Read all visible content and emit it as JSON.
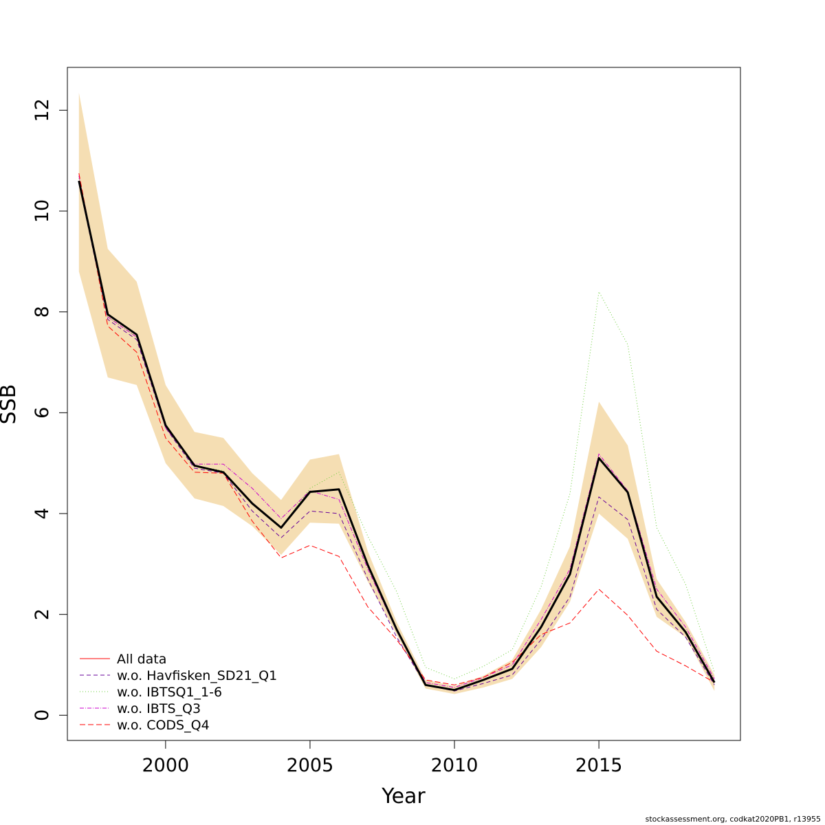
{
  "chart_data": {
    "type": "line",
    "xlabel": "Year",
    "ylabel": "SSB",
    "xlim": [
      1996.6,
      2019.9
    ],
    "ylim": [
      -0.5,
      12.85
    ],
    "x_ticks": [
      2000,
      2005,
      2010,
      2015
    ],
    "y_ticks": [
      0,
      2,
      4,
      6,
      8,
      10,
      12
    ],
    "x": [
      1997,
      1998,
      1999,
      2000,
      2001,
      2002,
      2003,
      2004,
      2005,
      2006,
      2007,
      2008,
      2009,
      2010,
      2011,
      2012,
      2013,
      2014,
      2015,
      2016,
      2017,
      2018,
      2019
    ],
    "confidence_band": {
      "color": "#f5deb3",
      "lower": [
        8.8,
        6.7,
        6.55,
        5.0,
        4.3,
        4.15,
        3.75,
        3.18,
        3.82,
        3.8,
        2.65,
        1.6,
        0.53,
        0.42,
        0.55,
        0.72,
        1.35,
        2.25,
        4.0,
        3.5,
        1.95,
        1.55,
        0.48
      ],
      "upper": [
        12.35,
        9.25,
        8.6,
        6.55,
        5.62,
        5.5,
        4.8,
        4.27,
        5.07,
        5.18,
        3.25,
        1.85,
        0.7,
        0.58,
        0.78,
        1.1,
        2.1,
        3.35,
        6.22,
        5.35,
        2.7,
        1.85,
        0.8
      ]
    },
    "main_line": {
      "color": "#000000",
      "values": [
        10.6,
        7.95,
        7.55,
        5.75,
        4.95,
        4.82,
        4.2,
        3.72,
        4.43,
        4.48,
        2.98,
        1.7,
        0.6,
        0.5,
        0.7,
        0.92,
        1.75,
        2.8,
        5.1,
        4.42,
        2.35,
        1.65,
        0.65
      ]
    },
    "series": [
      {
        "name": "All data",
        "color": "#ff0000",
        "dash": "",
        "values": [
          10.6,
          7.95,
          7.55,
          5.75,
          4.95,
          4.82,
          4.2,
          3.72,
          4.43,
          4.48,
          2.98,
          1.7,
          0.6,
          0.5,
          0.7,
          0.92,
          1.75,
          2.8,
          5.1,
          4.42,
          2.35,
          1.65,
          0.65
        ]
      },
      {
        "name": "w.o. Havfisken_SD21_Q1",
        "color": "#660099",
        "dash": "6,4",
        "values": [
          10.55,
          7.85,
          7.45,
          5.7,
          4.9,
          4.8,
          4.05,
          3.52,
          4.05,
          4.0,
          2.7,
          1.55,
          0.6,
          0.48,
          0.63,
          0.8,
          1.5,
          2.35,
          4.33,
          3.88,
          2.1,
          1.55,
          0.6
        ]
      },
      {
        "name": "w.o. IBTSQ1_1-6",
        "color": "#66cc33",
        "dash": "1,3",
        "values": [
          10.65,
          7.9,
          7.5,
          5.75,
          4.95,
          4.85,
          4.2,
          3.72,
          4.5,
          4.82,
          3.55,
          2.45,
          0.95,
          0.72,
          0.97,
          1.3,
          2.55,
          4.4,
          8.4,
          7.35,
          3.72,
          2.6,
          0.85
        ]
      },
      {
        "name": "w.o. IBTS_Q3",
        "color": "#cc00cc",
        "dash": "6,2,1,2",
        "values": [
          10.7,
          7.9,
          7.5,
          5.7,
          4.98,
          4.98,
          4.5,
          3.9,
          4.45,
          4.28,
          2.9,
          1.68,
          0.65,
          0.55,
          0.75,
          1.0,
          1.9,
          2.9,
          5.18,
          4.45,
          2.5,
          1.75,
          0.72
        ]
      },
      {
        "name": "w.o. CODS_Q4",
        "color": "#ff0000",
        "dash": "8,4",
        "values": [
          10.75,
          7.72,
          7.2,
          5.5,
          4.82,
          4.8,
          3.85,
          3.12,
          3.37,
          3.15,
          2.15,
          1.5,
          0.7,
          0.6,
          0.75,
          1.05,
          1.6,
          1.83,
          2.5,
          1.98,
          1.27,
          0.98,
          0.65
        ]
      }
    ],
    "legend_position": "bottom-left",
    "grid": false
  },
  "footer": "stockassessment.org, codkat2020PB1, r13955"
}
